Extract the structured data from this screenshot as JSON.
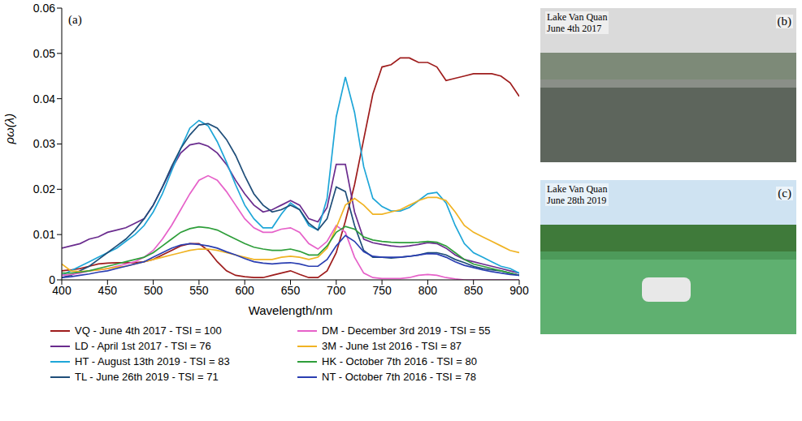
{
  "chart_data": {
    "type": "line",
    "panel_label": "(a)",
    "x_label": "Wavelength/nm",
    "y_label": "ρω(λ)",
    "xlim": [
      400,
      900
    ],
    "xticks": [
      400,
      450,
      500,
      550,
      600,
      650,
      700,
      750,
      800,
      850,
      900
    ],
    "ylim": [
      0,
      0.06
    ],
    "yticks": [
      0,
      0.01,
      0.02,
      0.03,
      0.04,
      0.05,
      0.06
    ],
    "grid": false,
    "legend": "bottom",
    "x": [
      400,
      410,
      420,
      430,
      440,
      450,
      460,
      470,
      480,
      490,
      500,
      510,
      520,
      530,
      540,
      550,
      560,
      570,
      580,
      590,
      600,
      610,
      620,
      630,
      640,
      650,
      660,
      670,
      680,
      690,
      700,
      710,
      720,
      730,
      740,
      750,
      760,
      770,
      780,
      790,
      800,
      810,
      820,
      830,
      840,
      850,
      860,
      870,
      880,
      890,
      900
    ],
    "series": [
      {
        "name": "VQ - June 4th 2017 - TSI = 100",
        "color": "#9e1c1c",
        "values": [
          0.002,
          0.0022,
          0.0025,
          0.003,
          0.0035,
          0.0037,
          0.0038,
          0.0038,
          0.0038,
          0.004,
          0.0045,
          0.0055,
          0.0065,
          0.0075,
          0.008,
          0.008,
          0.0065,
          0.004,
          0.002,
          0.001,
          0.0007,
          0.0005,
          0.0005,
          0.001,
          0.0015,
          0.002,
          0.0012,
          0.0005,
          0.0005,
          0.002,
          0.006,
          0.013,
          0.021,
          0.031,
          0.041,
          0.047,
          0.0475,
          0.049,
          0.049,
          0.048,
          0.048,
          0.047,
          0.044,
          0.0445,
          0.045,
          0.0455,
          0.0455,
          0.0455,
          0.045,
          0.0435,
          0.0405
        ]
      },
      {
        "name": "LD - April 1st 2017 - TSI = 76",
        "color": "#6a2c8e",
        "values": [
          0.007,
          0.0075,
          0.008,
          0.009,
          0.0095,
          0.0105,
          0.011,
          0.0115,
          0.0125,
          0.0135,
          0.0165,
          0.0205,
          0.0245,
          0.028,
          0.0298,
          0.0302,
          0.0295,
          0.028,
          0.0255,
          0.022,
          0.019,
          0.0165,
          0.015,
          0.0155,
          0.0165,
          0.0175,
          0.0165,
          0.0135,
          0.0128,
          0.016,
          0.0255,
          0.0255,
          0.015,
          0.009,
          0.0082,
          0.0078,
          0.0075,
          0.0073,
          0.0075,
          0.0078,
          0.0082,
          0.008,
          0.007,
          0.0055,
          0.0045,
          0.004,
          0.0035,
          0.003,
          0.0025,
          0.002,
          0.0015
        ]
      },
      {
        "name": "HT - August 13th 2019 - TSI = 83",
        "color": "#1ea6d8",
        "values": [
          0.001,
          0.002,
          0.003,
          0.004,
          0.005,
          0.006,
          0.007,
          0.0085,
          0.01,
          0.012,
          0.015,
          0.019,
          0.024,
          0.029,
          0.0335,
          0.0352,
          0.034,
          0.0305,
          0.026,
          0.021,
          0.0165,
          0.0135,
          0.0115,
          0.0115,
          0.0145,
          0.017,
          0.0155,
          0.012,
          0.011,
          0.018,
          0.036,
          0.0448,
          0.037,
          0.025,
          0.018,
          0.0162,
          0.0152,
          0.0152,
          0.016,
          0.0175,
          0.019,
          0.0193,
          0.017,
          0.012,
          0.008,
          0.006,
          0.005,
          0.004,
          0.003,
          0.0025,
          0.0015
        ]
      },
      {
        "name": "TL - June 26th 2019 - TSI = 71",
        "color": "#1f4e79",
        "values": [
          0.0005,
          0.001,
          0.002,
          0.003,
          0.0045,
          0.006,
          0.0075,
          0.009,
          0.011,
          0.0135,
          0.0165,
          0.0205,
          0.025,
          0.029,
          0.032,
          0.0342,
          0.0345,
          0.0335,
          0.031,
          0.0275,
          0.023,
          0.019,
          0.0165,
          0.015,
          0.0155,
          0.0165,
          0.0155,
          0.0125,
          0.011,
          0.0135,
          0.0205,
          0.0195,
          0.012,
          0.0065,
          0.005,
          0.005,
          0.0048,
          0.005,
          0.0052,
          0.0055,
          0.006,
          0.006,
          0.0055,
          0.0045,
          0.0038,
          0.003,
          0.0025,
          0.0022,
          0.002,
          0.0015,
          0.001
        ]
      },
      {
        "name": "DM - December 3rd 2019 - TSI = 55",
        "color": "#e661c9",
        "values": [
          0.001,
          0.0012,
          0.0015,
          0.002,
          0.0022,
          0.0025,
          0.003,
          0.0035,
          0.004,
          0.005,
          0.0065,
          0.009,
          0.012,
          0.0155,
          0.019,
          0.022,
          0.023,
          0.022,
          0.0195,
          0.0165,
          0.0135,
          0.0115,
          0.0105,
          0.0105,
          0.0112,
          0.0115,
          0.0105,
          0.008,
          0.0068,
          0.0085,
          0.012,
          0.0105,
          0.005,
          0.0015,
          0.0005,
          0.0003,
          0.0003,
          0.0003,
          0.0005,
          0.001,
          0.0012,
          0.001,
          0.0005,
          0.0002,
          0,
          0,
          0,
          0,
          0,
          0,
          0
        ]
      },
      {
        "name": "3M - June 1st 2016 - TSI = 87",
        "color": "#f0b323",
        "values": [
          0.0035,
          0.002,
          0.0018,
          0.002,
          0.0022,
          0.0025,
          0.0028,
          0.003,
          0.0035,
          0.004,
          0.0045,
          0.005,
          0.0055,
          0.006,
          0.0065,
          0.0068,
          0.0068,
          0.0065,
          0.006,
          0.0055,
          0.005,
          0.0045,
          0.0045,
          0.0045,
          0.005,
          0.0052,
          0.005,
          0.0045,
          0.005,
          0.007,
          0.0115,
          0.0165,
          0.018,
          0.0165,
          0.0145,
          0.0145,
          0.015,
          0.0155,
          0.0165,
          0.0175,
          0.0182,
          0.0182,
          0.0175,
          0.015,
          0.012,
          0.0105,
          0.0095,
          0.0085,
          0.0075,
          0.0065,
          0.006
        ]
      },
      {
        "name": "HK - October 7th 2016 - TSI = 80",
        "color": "#2e9e3a",
        "values": [
          0.0015,
          0.0015,
          0.0017,
          0.002,
          0.0025,
          0.003,
          0.0035,
          0.004,
          0.0045,
          0.005,
          0.006,
          0.0075,
          0.009,
          0.0105,
          0.0113,
          0.0117,
          0.0115,
          0.011,
          0.01,
          0.009,
          0.008,
          0.0072,
          0.0068,
          0.0065,
          0.0065,
          0.0068,
          0.0063,
          0.0055,
          0.0055,
          0.0075,
          0.0105,
          0.0118,
          0.0112,
          0.0095,
          0.0088,
          0.0085,
          0.0083,
          0.0082,
          0.0082,
          0.0083,
          0.0085,
          0.0083,
          0.0075,
          0.006,
          0.0045,
          0.0035,
          0.003,
          0.0025,
          0.002,
          0.0015,
          0.001
        ]
      },
      {
        "name": "NT - October 7th 2016 - TSI = 78",
        "color": "#2a3eb1",
        "values": [
          0.0005,
          0.0007,
          0.001,
          0.0013,
          0.0017,
          0.002,
          0.0025,
          0.003,
          0.0035,
          0.004,
          0.005,
          0.006,
          0.007,
          0.0077,
          0.008,
          0.0078,
          0.0075,
          0.007,
          0.0062,
          0.0055,
          0.0047,
          0.004,
          0.0037,
          0.0035,
          0.0037,
          0.0038,
          0.0035,
          0.003,
          0.003,
          0.0045,
          0.0075,
          0.0098,
          0.0085,
          0.0062,
          0.0052,
          0.005,
          0.005,
          0.005,
          0.0052,
          0.0055,
          0.0058,
          0.0057,
          0.005,
          0.004,
          0.0032,
          0.0027,
          0.0022,
          0.0018,
          0.0015,
          0.0012,
          0.001
        ]
      }
    ]
  },
  "photos": [
    {
      "label": "(b)",
      "caption": [
        "Lake Van Quan",
        "June 4th 2017"
      ]
    },
    {
      "label": "(c)",
      "caption": [
        "Lake Van Quan",
        "June 28th 2019"
      ]
    }
  ]
}
